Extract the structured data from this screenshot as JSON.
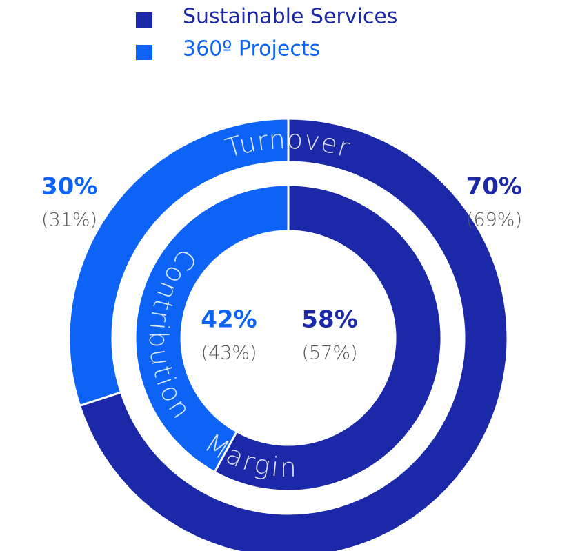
{
  "chart_data": {
    "type": "donut",
    "categories": [
      "Sustainable Services",
      "360º Projects"
    ],
    "colors": [
      "#1b28a8",
      "#0d63f5"
    ],
    "rings": [
      {
        "name": "Turnover",
        "values": [
          70,
          30
        ],
        "value_labels": [
          "70%",
          "30%"
        ],
        "prior_values": [
          69,
          31
        ],
        "prior_value_labels": [
          "(69%)",
          "(31%)"
        ]
      },
      {
        "name_parts": [
          "Margin",
          "Contribution"
        ],
        "values": [
          58,
          42
        ],
        "value_labels": [
          "58%",
          "42%"
        ],
        "prior_values": [
          57,
          43
        ],
        "prior_value_labels": [
          "(57%)",
          "(43%)"
        ]
      }
    ]
  }
}
